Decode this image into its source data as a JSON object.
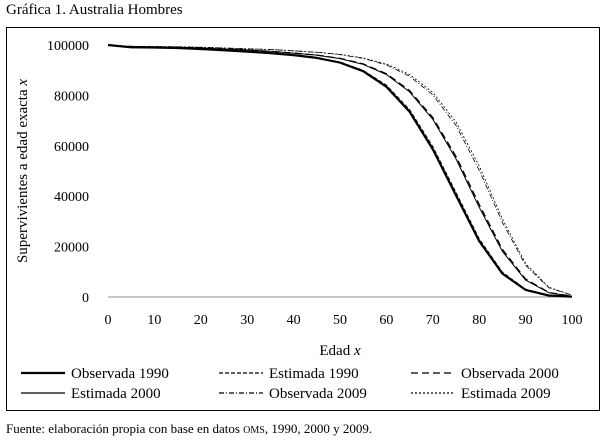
{
  "figure_title": "Gráfica 1. Australia Hombres",
  "source_note": {
    "before": "Fuente: elaboración propia con base en datos ",
    "small_caps": "OMS",
    "after": ", 1990, 2000 y 2009."
  },
  "chart_data": {
    "type": "line",
    "title": "",
    "xlabel": "Edad x",
    "ylabel": "Supervivientes a edad exacta x",
    "xlim": [
      0,
      100
    ],
    "ylim": [
      0,
      100000
    ],
    "xticks": [
      "0",
      "10",
      "20",
      "30",
      "40",
      "50",
      "60",
      "70",
      "80",
      "90",
      "100"
    ],
    "yticks": [
      "0",
      "20000",
      "40000",
      "60000",
      "80000",
      "100000"
    ],
    "grid": false,
    "legend_position": "bottom",
    "x": [
      0,
      5,
      10,
      15,
      20,
      25,
      30,
      35,
      40,
      45,
      50,
      55,
      60,
      65,
      70,
      75,
      80,
      85,
      90,
      95,
      100
    ],
    "series": [
      {
        "name": "Observada 1990",
        "style": "solid-thick",
        "values": [
          100000,
          99100,
          99000,
          98800,
          98400,
          97900,
          97400,
          96800,
          96000,
          94900,
          93000,
          89600,
          83400,
          73500,
          58600,
          40300,
          22200,
          9300,
          2800,
          600,
          100
        ]
      },
      {
        "name": "Estimada 1990",
        "style": "dash-short",
        "values": [
          100000,
          99100,
          99000,
          98800,
          98400,
          97900,
          97400,
          96800,
          96000,
          94900,
          93200,
          89900,
          84000,
          74300,
          59600,
          41400,
          23000,
          9800,
          3000,
          600,
          100
        ]
      },
      {
        "name": "Observada 2000",
        "style": "dash-long",
        "values": [
          100000,
          99300,
          99200,
          99100,
          98800,
          98400,
          98000,
          97500,
          96800,
          96000,
          94700,
          92500,
          88600,
          81900,
          71200,
          55800,
          36700,
          18900,
          7100,
          1800,
          300
        ]
      },
      {
        "name": "Estimada 2000",
        "style": "solid-thin",
        "values": [
          100000,
          99300,
          99200,
          99100,
          98800,
          98400,
          98000,
          97500,
          96800,
          96000,
          94600,
          92300,
          88300,
          81400,
          70500,
          54800,
          35600,
          18100,
          6700,
          1700,
          300
        ]
      },
      {
        "name": "Observada 2009",
        "style": "dash-dot",
        "values": [
          100000,
          99500,
          99400,
          99300,
          99100,
          98800,
          98500,
          98200,
          97700,
          97100,
          96200,
          94700,
          92100,
          87600,
          80200,
          68100,
          50300,
          29600,
          12600,
          3700,
          700
        ]
      },
      {
        "name": "Estimada 2009",
        "style": "dotted",
        "values": [
          100000,
          99500,
          99400,
          99300,
          99100,
          98800,
          98500,
          98200,
          97700,
          97100,
          96300,
          94900,
          92500,
          88300,
          81200,
          69500,
          52000,
          31000,
          13300,
          3900,
          700
        ]
      }
    ]
  }
}
